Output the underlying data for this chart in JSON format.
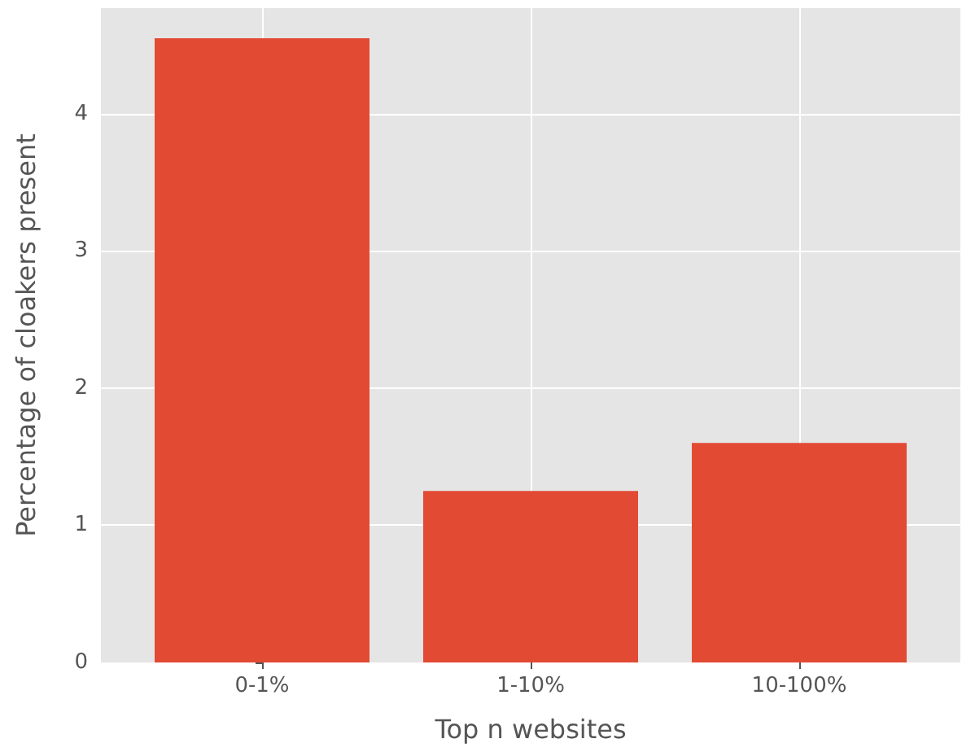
{
  "chart_data": {
    "type": "bar",
    "xlabel": "Top n websites",
    "ylabel": "Percentage of cloakers present",
    "categories": [
      "0-1%",
      "1-10%",
      "10-100%"
    ],
    "values": [
      4.55,
      1.25,
      1.6
    ],
    "color": "#e24a33",
    "ylim": [
      0,
      4.77
    ],
    "yticks": [
      0,
      1,
      2,
      3,
      4
    ],
    "grid": true
  }
}
